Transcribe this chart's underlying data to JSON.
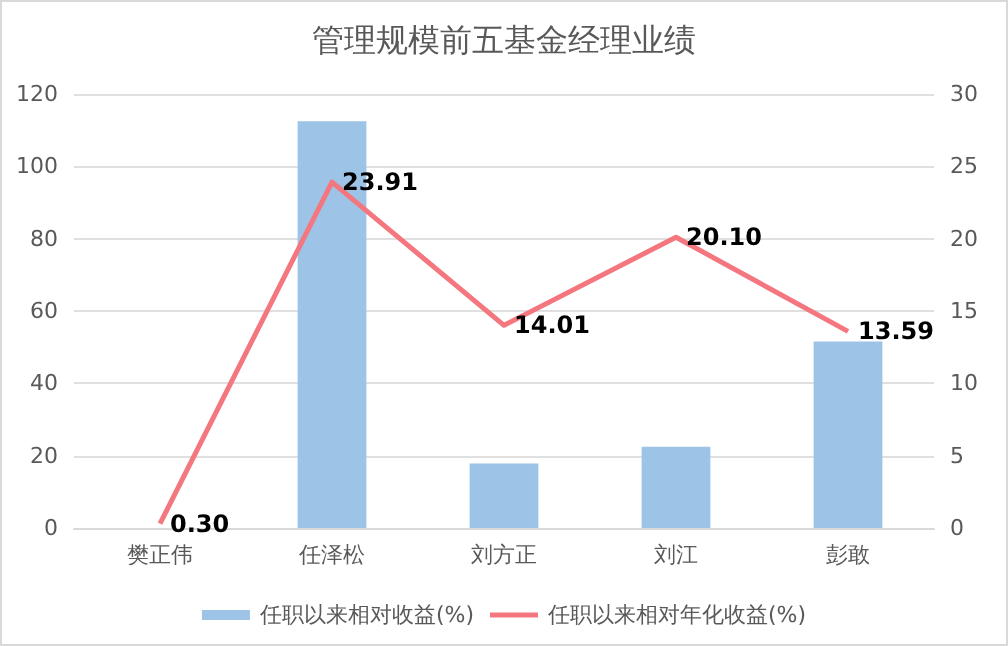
{
  "chart_data": {
    "type": "bar",
    "title": "管理规模前五基金经理业绩",
    "categories": [
      "樊正伟",
      "任泽松",
      "刘方正",
      "刘江",
      "彭敢"
    ],
    "series": [
      {
        "name": "任职以来相对收益(%)",
        "color": "#9dc3e6",
        "values": [
          0,
          112.5,
          17.8,
          22.5,
          51.6
        ]
      },
      {
        "name": "任职以来相对年化收益(%)",
        "type": "line",
        "axis": "y2",
        "color": "#f4777f",
        "values": [
          0.3,
          23.91,
          14.01,
          20.1,
          13.59
        ],
        "value_labels": [
          "0.30",
          "23.91",
          "14.01",
          "20.10",
          "13.59"
        ]
      }
    ],
    "ylim": [
      0,
      120
    ],
    "yticks": [
      0,
      20,
      40,
      60,
      80,
      100,
      120
    ],
    "y2lim": [
      0,
      30
    ],
    "y2ticks": [
      0,
      5,
      10,
      15,
      20,
      25,
      30
    ],
    "grid": "y",
    "legend": "bottom",
    "marker": "none"
  }
}
